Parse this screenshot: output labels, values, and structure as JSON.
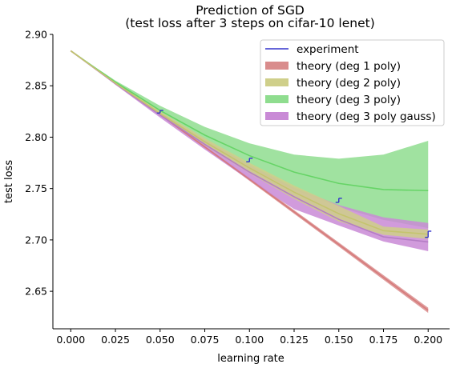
{
  "chart_data": {
    "type": "line",
    "title": "Prediction of SGD",
    "subtitle": "(test loss after 3 steps on cifar-10 lenet)",
    "xlabel": "learning rate",
    "ylabel": "test loss",
    "xlim": [
      -0.01,
      0.212
    ],
    "ylim": [
      2.6135,
      2.9
    ],
    "x_ticks": [
      0.0,
      0.025,
      0.05,
      0.075,
      0.1,
      0.125,
      0.15,
      0.175,
      0.2
    ],
    "x_tick_labels": [
      "0.000",
      "0.025",
      "0.050",
      "0.075",
      "0.100",
      "0.125",
      "0.150",
      "0.175",
      "0.200"
    ],
    "y_ticks": [
      2.65,
      2.7,
      2.75,
      2.8,
      2.85,
      2.9
    ],
    "y_tick_labels": [
      "2.65",
      "2.70",
      "2.75",
      "2.80",
      "2.85",
      "2.90"
    ],
    "legend_position": "top-right",
    "legend": [
      {
        "key": "experiment",
        "label": "experiment",
        "kind": "line",
        "color": "#3333cc"
      },
      {
        "key": "deg1",
        "label": "theory (deg 1 poly)",
        "kind": "patch",
        "color": "#d98c8c"
      },
      {
        "key": "deg2",
        "label": "theory (deg 2 poly)",
        "kind": "patch",
        "color": "#cfcf8a"
      },
      {
        "key": "deg3",
        "label": "theory (deg 3 poly)",
        "kind": "patch",
        "color": "#8fdd8f"
      },
      {
        "key": "deg3gauss",
        "label": "theory (deg 3 poly gauss)",
        "kind": "patch",
        "color": "#c98ad6"
      }
    ],
    "series": [
      {
        "name": "theory (deg 1 poly)",
        "key": "deg1",
        "fill_color": "#d98c8c",
        "line_color": "#d67a7a",
        "x": [
          0.0,
          0.05,
          0.1,
          0.15,
          0.2
        ],
        "mean": [
          2.884,
          2.822,
          2.759,
          2.6955,
          2.6315
        ],
        "lower": [
          2.8835,
          2.821,
          2.7575,
          2.6935,
          2.629
        ],
        "upper": [
          2.8845,
          2.823,
          2.7605,
          2.6975,
          2.634
        ]
      },
      {
        "name": "theory (deg 3 poly)",
        "key": "deg3",
        "fill_color": "#8fdd8f",
        "line_color": "#66d466",
        "x": [
          0.0,
          0.025,
          0.05,
          0.075,
          0.1,
          0.125,
          0.15,
          0.175,
          0.2
        ],
        "mean": [
          2.884,
          2.8535,
          2.826,
          2.802,
          2.782,
          2.766,
          2.755,
          2.749,
          2.748
        ],
        "lower": [
          2.884,
          2.852,
          2.8215,
          2.794,
          2.77,
          2.749,
          2.732,
          2.7195,
          2.7115
        ],
        "upper": [
          2.884,
          2.855,
          2.8305,
          2.81,
          2.794,
          2.783,
          2.779,
          2.783,
          2.7965
        ]
      },
      {
        "name": "theory (deg 3 poly gauss)",
        "key": "deg3gauss",
        "fill_color": "#c98ad6",
        "line_color": "#b47dc4",
        "x": [
          0.0,
          0.025,
          0.05,
          0.075,
          0.1,
          0.125,
          0.15,
          0.175,
          0.2
        ],
        "mean": [
          2.884,
          2.852,
          2.8215,
          2.793,
          2.766,
          2.742,
          2.72,
          2.703,
          2.698
        ],
        "lower": [
          2.884,
          2.851,
          2.819,
          2.788,
          2.758,
          2.73,
          2.714,
          2.6985,
          2.689
        ],
        "upper": [
          2.884,
          2.853,
          2.824,
          2.7975,
          2.773,
          2.751,
          2.734,
          2.722,
          2.7165
        ]
      },
      {
        "name": "theory (deg 2 poly)",
        "key": "deg2",
        "fill_color": "#cfcf8a",
        "line_color": "#c4c46e",
        "x": [
          0.0,
          0.025,
          0.05,
          0.075,
          0.1,
          0.125,
          0.15,
          0.175,
          0.2
        ],
        "mean": [
          2.884,
          2.8525,
          2.823,
          2.7955,
          2.77,
          2.7465,
          2.7255,
          2.709,
          2.7055
        ],
        "lower": [
          2.884,
          2.8515,
          2.821,
          2.792,
          2.765,
          2.74,
          2.718,
          2.705,
          2.701
        ],
        "upper": [
          2.884,
          2.8535,
          2.825,
          2.799,
          2.775,
          2.753,
          2.733,
          2.713,
          2.71
        ]
      }
    ],
    "experiment": {
      "name": "experiment",
      "color": "#3333cc",
      "points": [
        {
          "x": 0.05,
          "low": 2.8235,
          "high": 2.826
        },
        {
          "x": 0.1,
          "low": 2.776,
          "high": 2.7795
        },
        {
          "x": 0.15,
          "low": 2.7365,
          "high": 2.7405
        },
        {
          "x": 0.2,
          "low": 2.7025,
          "high": 2.7085
        }
      ]
    }
  }
}
